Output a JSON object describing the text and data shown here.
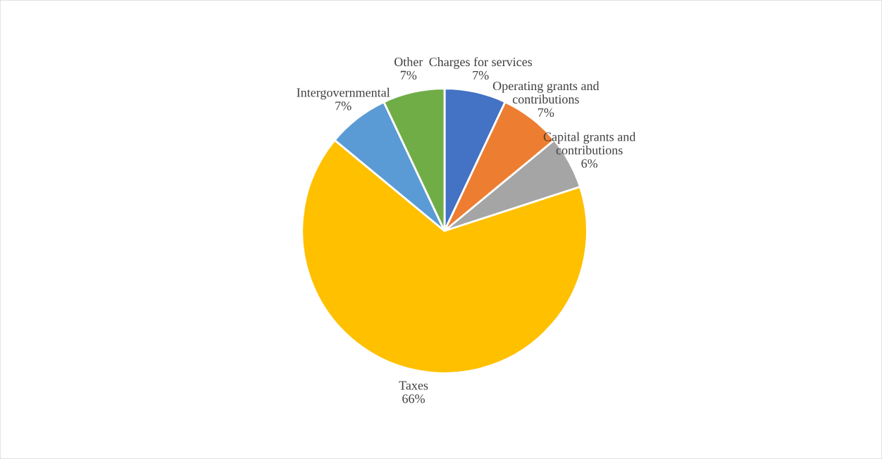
{
  "chart_data": {
    "type": "pie",
    "categories": [
      "Charges for services",
      "Operating grants and\ncontributions",
      "Capital grants and\ncontributions",
      "Taxes",
      "Intergovernmental",
      "Other"
    ],
    "values": [
      7,
      7,
      6,
      66,
      7,
      7
    ],
    "value_labels": [
      "7%",
      "7%",
      "6%",
      "66%",
      "7%",
      "7%"
    ],
    "colors": [
      "#4472c4",
      "#ed7d31",
      "#a5a5a5",
      "#ffc000",
      "#5b9bd5",
      "#70ad47"
    ],
    "legend": false
  }
}
